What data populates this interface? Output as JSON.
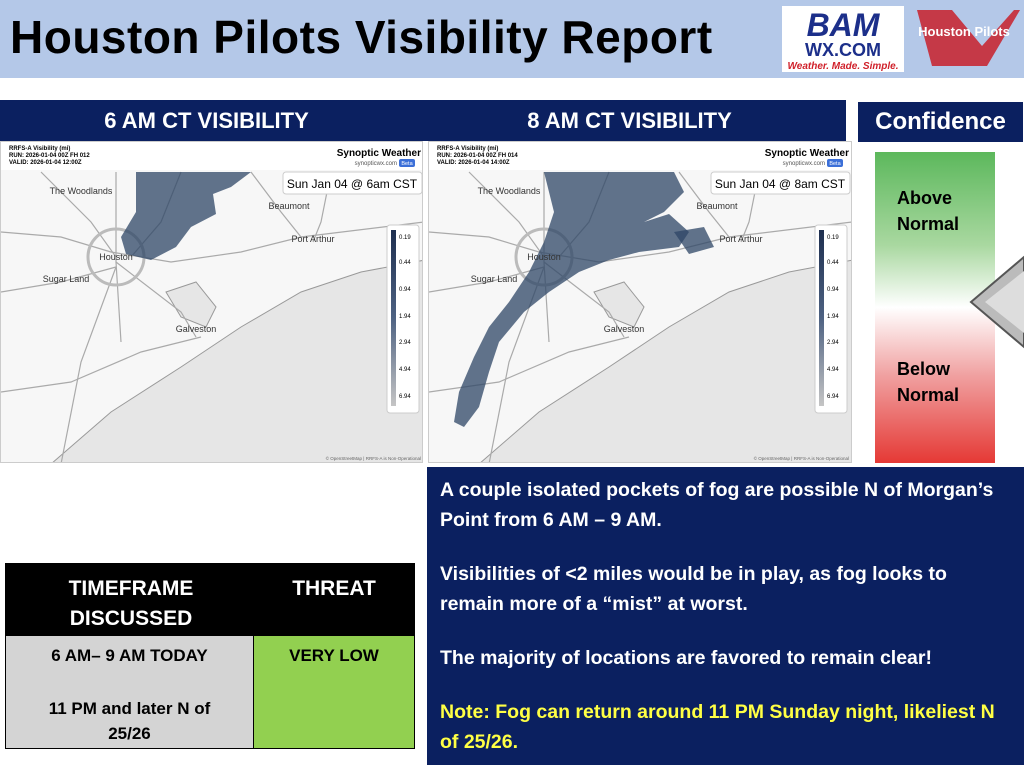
{
  "header": {
    "title": "Houston Pilots Visibility Report",
    "logos": {
      "bam": "BAM",
      "wx": "WX.COM",
      "tagline": "Weather. Made. Simple.",
      "pilots": "Houston Pilots"
    }
  },
  "panels": [
    {
      "heading": "6 AM CT VISIBILITY",
      "map": {
        "product": "RRFS-A Visibility (mi)",
        "run": "RUN: 2026-01-04 00Z FH 012",
        "valid": "VALID: 2026-01-04 12:00Z",
        "brand": "Synoptic Weather",
        "site": "synopticwx.com",
        "badge": "Beta",
        "time": "Sun Jan 04 @ 6am CST",
        "attribution": "© OpenStreetMap | RRFS-A is Non-Operational"
      }
    },
    {
      "heading": "8 AM CT VISIBILITY",
      "map": {
        "product": "RRFS-A Visibility (mi)",
        "run": "RUN: 2026-01-04 00Z FH 014",
        "valid": "VALID: 2026-01-04 14:00Z",
        "brand": "Synoptic Weather",
        "site": "synopticwx.com",
        "badge": "Beta",
        "time": "Sun Jan 04 @ 8am CST",
        "attribution": "© OpenStreetMap | RRFS-A is Non-Operational"
      }
    }
  ],
  "map_labels": [
    "The Woodlands",
    "Beaumont",
    "Port Arthur",
    "Houston",
    "Sugar Land",
    "Galveston"
  ],
  "legend": [
    0.19,
    0.44,
    0.94,
    1.94,
    2.94,
    4.94,
    6.94
  ],
  "confidence": {
    "heading": "Confidence",
    "above": "Above Normal",
    "below": "Below Normal"
  },
  "table": {
    "headers": [
      "TIMEFRAME DISCUSSED",
      "THREAT"
    ],
    "timeframes": [
      "6 AM– 9 AM TODAY",
      "11 PM and later N of 25/26"
    ],
    "threat": "VERY LOW"
  },
  "summary": {
    "paragraphs": [
      "A couple isolated pockets of fog are possible N of Morgan’s Point from 6 AM – 9 AM.",
      "Visibilities of <2 miles would be in play, as fog looks to remain more of a “mist” at worst.",
      "The majority of locations are favored to remain clear!"
    ],
    "note": "Note: Fog can return around 11 PM Sunday night, likeliest N of 25/26."
  }
}
